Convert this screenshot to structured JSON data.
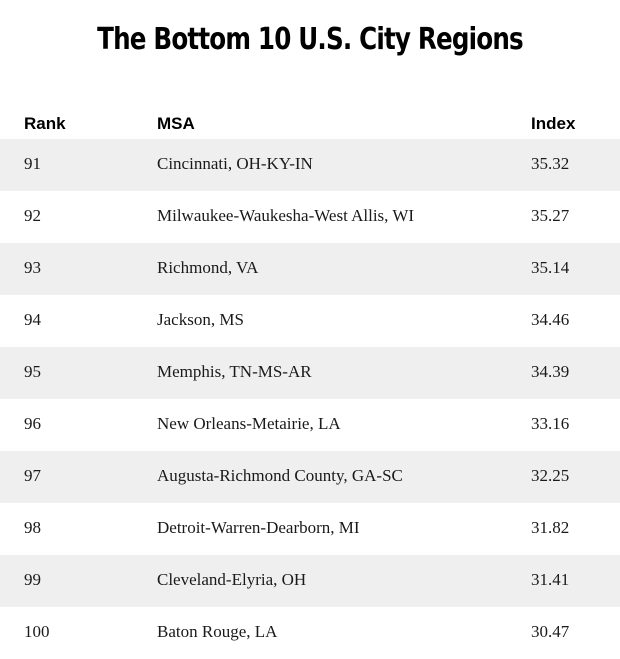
{
  "title": "The Bottom 10 U.S. City Regions",
  "chart_data": {
    "type": "table",
    "title": "The Bottom 10 U.S. City Regions",
    "columns": [
      "Rank",
      "MSA",
      "Index"
    ],
    "rows": [
      {
        "rank": "91",
        "msa": "Cincinnati, OH-KY-IN",
        "index": "35.32"
      },
      {
        "rank": "92",
        "msa": "Milwaukee-Waukesha-West Allis, WI",
        "index": "35.27"
      },
      {
        "rank": "93",
        "msa": "Richmond, VA",
        "index": "35.14"
      },
      {
        "rank": "94",
        "msa": "Jackson, MS",
        "index": "34.46"
      },
      {
        "rank": "95",
        "msa": "Memphis, TN-MS-AR",
        "index": "34.39"
      },
      {
        "rank": "96",
        "msa": "New Orleans-Metairie, LA",
        "index": "33.16"
      },
      {
        "rank": "97",
        "msa": "Augusta-Richmond County, GA-SC",
        "index": "32.25"
      },
      {
        "rank": "98",
        "msa": "Detroit-Warren-Dearborn, MI",
        "index": "31.82"
      },
      {
        "rank": "99",
        "msa": "Cleveland-Elyria, OH",
        "index": "31.41"
      },
      {
        "rank": "100",
        "msa": "Baton Rouge, LA",
        "index": "30.47"
      }
    ]
  },
  "colors": {
    "stripe": "#efefef",
    "background": "#ffffff",
    "text": "#1a1a1a"
  }
}
